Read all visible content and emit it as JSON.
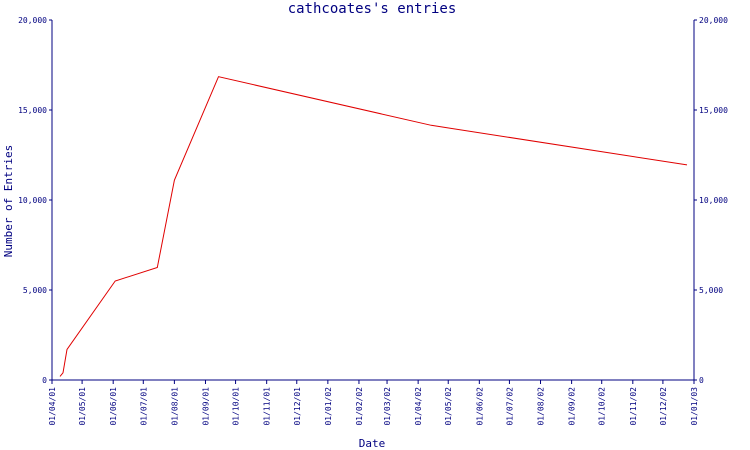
{
  "chart_data": {
    "type": "line",
    "title": "cathcoates's entries",
    "xlabel": "Date",
    "ylabel": "Number of Entries",
    "ylim": [
      0,
      20000
    ],
    "yticks": [
      {
        "value": 0,
        "label": "0"
      },
      {
        "value": 5000,
        "label": "5,000"
      },
      {
        "value": 10000,
        "label": "10,000"
      },
      {
        "value": 15000,
        "label": "15,000"
      },
      {
        "value": 20000,
        "label": "20,000"
      }
    ],
    "xrange": [
      "2001-04-01",
      "2003-01-01"
    ],
    "xticks": [
      {
        "date": "2001-04-01",
        "label": "01/04/01"
      },
      {
        "date": "2001-05-01",
        "label": "01/05/01"
      },
      {
        "date": "2001-06-01",
        "label": "01/06/01"
      },
      {
        "date": "2001-07-01",
        "label": "01/07/01"
      },
      {
        "date": "2001-08-01",
        "label": "01/08/01"
      },
      {
        "date": "2001-09-01",
        "label": "01/09/01"
      },
      {
        "date": "2001-10-01",
        "label": "01/10/01"
      },
      {
        "date": "2001-11-01",
        "label": "01/11/01"
      },
      {
        "date": "2001-12-01",
        "label": "01/12/01"
      },
      {
        "date": "2002-01-01",
        "label": "01/01/02"
      },
      {
        "date": "2002-02-01",
        "label": "01/02/02"
      },
      {
        "date": "2002-03-01",
        "label": "01/03/02"
      },
      {
        "date": "2002-04-01",
        "label": "01/04/02"
      },
      {
        "date": "2002-05-01",
        "label": "01/05/02"
      },
      {
        "date": "2002-06-01",
        "label": "01/06/02"
      },
      {
        "date": "2002-07-01",
        "label": "01/07/02"
      },
      {
        "date": "2002-08-01",
        "label": "01/08/02"
      },
      {
        "date": "2002-09-01",
        "label": "01/09/02"
      },
      {
        "date": "2002-10-01",
        "label": "01/10/02"
      },
      {
        "date": "2002-11-01",
        "label": "01/11/02"
      },
      {
        "date": "2002-12-01",
        "label": "01/12/02"
      },
      {
        "date": "2003-01-01",
        "label": "01/01/03"
      }
    ],
    "series": [
      {
        "color": "#e00000",
        "points": [
          {
            "x": "2001-04-09",
            "y": 200
          },
          {
            "x": "2001-04-12",
            "y": 400
          },
          {
            "x": "2001-04-16",
            "y": 1700
          },
          {
            "x": "2001-06-03",
            "y": 5500
          },
          {
            "x": "2001-07-15",
            "y": 6250
          },
          {
            "x": "2001-08-01",
            "y": 11100
          },
          {
            "x": "2001-09-14",
            "y": 16850
          },
          {
            "x": "2002-04-14",
            "y": 14150
          },
          {
            "x": "2002-12-25",
            "y": 11950
          }
        ]
      }
    ],
    "grid": false,
    "legend": "none"
  }
}
